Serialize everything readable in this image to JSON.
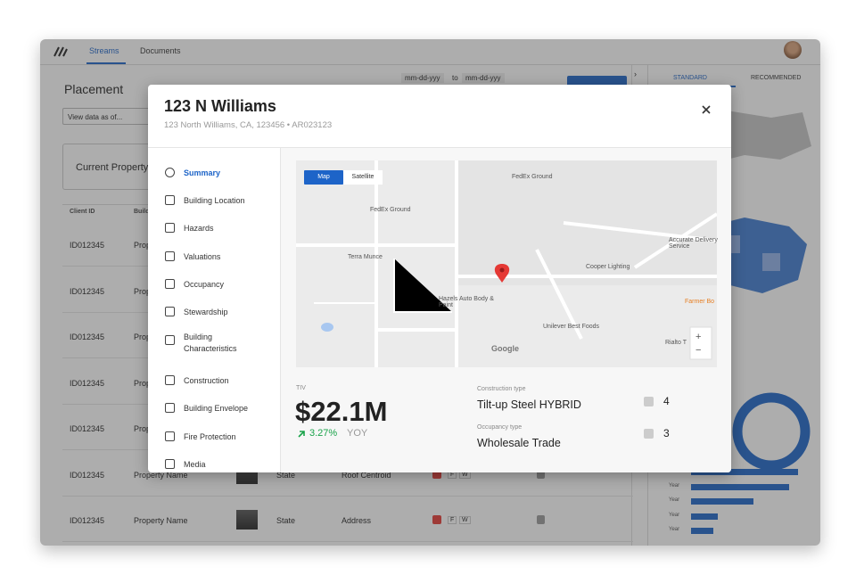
{
  "nav": {
    "tabs": [
      "Streams",
      "Documents"
    ]
  },
  "page": {
    "title": "Placement",
    "view_data": "View data as of...",
    "date_from": "mm-dd-yyy",
    "date_sep": "to",
    "date_to": "mm-dd-yyy",
    "card": "Current Property"
  },
  "table": {
    "header": [
      "Client ID",
      "Building"
    ],
    "rows": [
      {
        "id": "ID012345",
        "name": "Property Name"
      },
      {
        "id": "ID012345",
        "name": "Property Name"
      },
      {
        "id": "ID012345",
        "name": "Property Name"
      },
      {
        "id": "ID012345",
        "name": "Property Name"
      },
      {
        "id": "ID012345",
        "name": "Property Name"
      },
      {
        "id": "ID012345",
        "name": "Property Name",
        "state": "State",
        "address": "Roof Centroid",
        "badges": [
          "F",
          "W"
        ]
      },
      {
        "id": "ID012345",
        "name": "Property Name",
        "state": "State",
        "address": "Address",
        "badges": [
          "F",
          "W"
        ]
      }
    ]
  },
  "side_panel": {
    "tabs": [
      "STANDARD",
      "RECOMMENDED"
    ],
    "bar_labels": [
      "Year",
      "Year",
      "Year",
      "Year",
      "Year"
    ]
  },
  "modal": {
    "title": "123 N Williams",
    "subtitle": "123 North Williams, CA, 123456 • AR023123",
    "menu": [
      "Summary",
      "Building Location",
      "Hazards",
      "Valuations",
      "Occupancy",
      "Stewardship",
      "Building Characteristics",
      "Construction",
      "Building Envelope",
      "Fire Protection",
      "Media"
    ],
    "map": {
      "buttons": [
        "Map",
        "Satellite"
      ],
      "places": [
        "FedEx Ground",
        "FedEx Ground",
        "Terra Munce",
        "Hazels Auto Body & Paint",
        "Cooper Lighting",
        "Accurate Delivery Service",
        "Unilever Best Foods",
        "Farmer Bo",
        "Rialto T"
      ],
      "brand": "Google",
      "zoom": [
        "+",
        "−"
      ]
    },
    "stats": {
      "tiv_label": "TIV",
      "tiv": "$22.1M",
      "change": "3.27%",
      "change_period": "YOY",
      "construction_label": "Construction type",
      "construction": "Tilt-up Steel HYBRID",
      "occupancy_label": "Occupancy type",
      "occupancy": "Wholesale Trade",
      "counts": [
        "4",
        "3"
      ]
    }
  }
}
